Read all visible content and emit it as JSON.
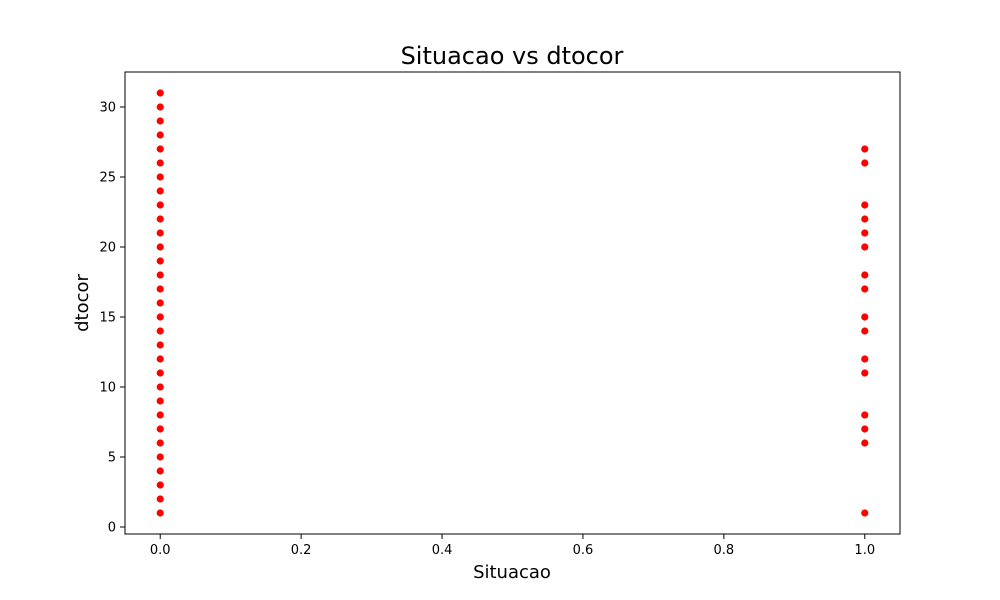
{
  "chart_data": {
    "type": "scatter",
    "title": "Situacao vs dtocor",
    "xlabel": "Situacao",
    "ylabel": "dtocor",
    "xlim": [
      -0.05,
      1.05
    ],
    "ylim": [
      -0.5,
      32.5
    ],
    "xticks": [
      "0.0",
      "0.2",
      "0.4",
      "0.6",
      "0.8",
      "1.0"
    ],
    "yticks": [
      "0",
      "5",
      "10",
      "15",
      "20",
      "25",
      "30"
    ],
    "grid": false,
    "marker_color": "#ff0000",
    "series": [
      {
        "x": [
          0,
          0,
          0,
          0,
          0,
          0,
          0,
          0,
          0,
          0,
          0,
          0,
          0,
          0,
          0,
          0,
          0,
          0,
          0,
          0,
          0,
          0,
          0,
          0,
          0,
          0,
          0,
          0,
          0,
          0,
          0,
          1,
          1,
          1,
          1,
          1,
          1,
          1,
          1,
          1,
          1,
          1,
          1,
          1,
          1,
          1,
          1
        ],
        "y": [
          1,
          2,
          3,
          4,
          5,
          6,
          7,
          8,
          9,
          10,
          11,
          12,
          13,
          14,
          15,
          16,
          17,
          18,
          19,
          20,
          21,
          22,
          23,
          24,
          25,
          26,
          27,
          28,
          29,
          30,
          31,
          1,
          6,
          7,
          8,
          11,
          12,
          14,
          15,
          17,
          18,
          20,
          21,
          22,
          23,
          26,
          27
        ]
      }
    ]
  }
}
